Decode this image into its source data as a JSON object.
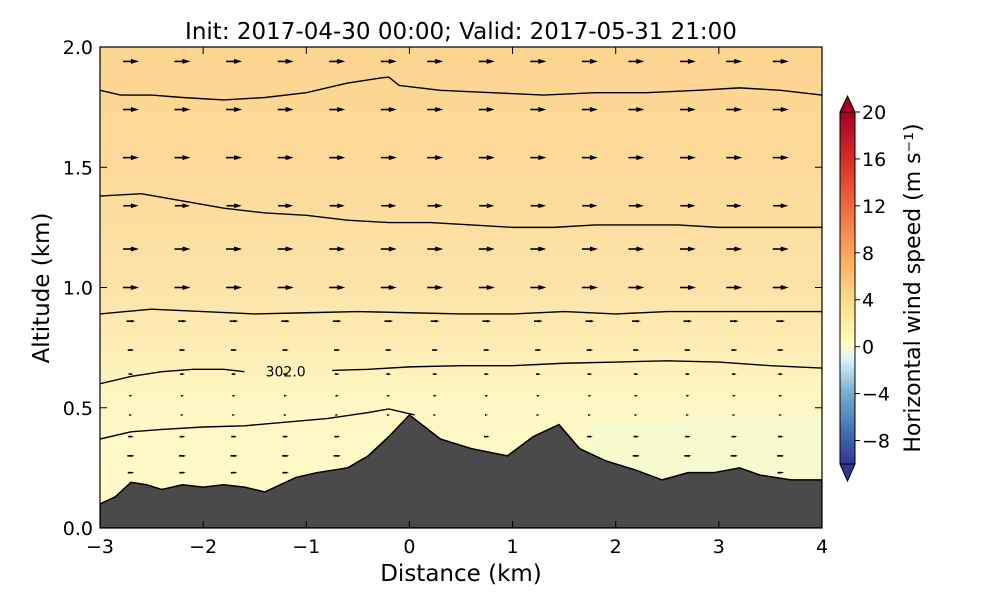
{
  "chart_data": {
    "type": "heatmap",
    "title": "Init: 2017-04-30 00:00; Valid: 2017-05-31 21:00",
    "xlabel": "Distance (km)",
    "ylabel": "Altitude (km)",
    "xlim": [
      -3,
      4
    ],
    "ylim": [
      0.0,
      2.0
    ],
    "x_ticks": [
      -3,
      -2,
      -1,
      0,
      1,
      2,
      3,
      4
    ],
    "x_tick_labels": [
      "−3",
      "−2",
      "−1",
      "0",
      "1",
      "2",
      "3",
      "4"
    ],
    "y_ticks": [
      0.0,
      0.5,
      1.0,
      1.5,
      2.0
    ],
    "y_tick_labels": [
      "0.0",
      "0.5",
      "1.0",
      "1.5",
      "2.0"
    ],
    "colorbar": {
      "label": "Horizontal wind speed (m s⁻¹)",
      "range": [
        -10,
        20
      ],
      "extend": "both",
      "ticks": [
        20,
        16,
        12,
        8,
        4,
        0,
        -4,
        -8
      ],
      "tick_labels": [
        "20",
        "16",
        "12",
        "8",
        "4",
        "0",
        "−4",
        "−8"
      ],
      "colormap": "RdYlBu_r"
    },
    "terrain": {
      "x": [
        -3.0,
        -2.85,
        -2.7,
        -2.55,
        -2.4,
        -2.2,
        -2.0,
        -1.8,
        -1.6,
        -1.4,
        -1.3,
        -1.1,
        -0.9,
        -0.6,
        -0.4,
        -0.2,
        0.0,
        0.15,
        0.3,
        0.6,
        0.95,
        1.2,
        1.45,
        1.65,
        1.9,
        2.2,
        2.45,
        2.7,
        2.95,
        3.2,
        3.4,
        3.7,
        4.0
      ],
      "y": [
        0.1,
        0.13,
        0.19,
        0.18,
        0.16,
        0.18,
        0.17,
        0.18,
        0.17,
        0.15,
        0.17,
        0.21,
        0.23,
        0.25,
        0.3,
        0.38,
        0.47,
        0.42,
        0.37,
        0.33,
        0.3,
        0.38,
        0.43,
        0.33,
        0.28,
        0.24,
        0.2,
        0.23,
        0.23,
        0.25,
        0.22,
        0.2,
        0.2
      ]
    },
    "theta_contours": [
      {
        "level": "302.0",
        "labeled": true,
        "label_x": -1.2,
        "label_y": 0.65,
        "x": [
          -3.0,
          -2.7,
          -2.4,
          -2.1,
          -1.8,
          -1.6
        ],
        "y": [
          0.6,
          0.63,
          0.65,
          0.66,
          0.66,
          0.65
        ]
      },
      {
        "level": "",
        "labeled": false,
        "x": [
          -0.75,
          -0.4,
          0.0,
          0.5,
          1.0,
          1.5,
          2.0,
          2.5,
          3.0,
          3.5,
          4.0
        ],
        "y": [
          0.655,
          0.66,
          0.67,
          0.675,
          0.675,
          0.685,
          0.69,
          0.695,
          0.69,
          0.675,
          0.665
        ]
      },
      {
        "level": "",
        "labeled": false,
        "x": [
          -3.0,
          -2.7,
          -2.4,
          -2.0,
          -1.6,
          -1.2,
          -0.8,
          -0.4,
          -0.2,
          -0.05,
          0.05
        ],
        "y": [
          0.37,
          0.4,
          0.41,
          0.42,
          0.425,
          0.44,
          0.455,
          0.48,
          0.495,
          0.48,
          0.47
        ]
      },
      {
        "level": "",
        "labeled": false,
        "x": [
          -3.0,
          -2.5,
          -2.0,
          -1.5,
          -1.0,
          -0.5,
          0.0,
          0.5,
          1.0,
          1.5,
          2.0,
          2.5,
          3.0,
          3.5,
          4.0
        ],
        "y": [
          0.89,
          0.91,
          0.9,
          0.89,
          0.895,
          0.9,
          0.895,
          0.89,
          0.89,
          0.9,
          0.89,
          0.9,
          0.9,
          0.9,
          0.9
        ]
      },
      {
        "level": "",
        "labeled": false,
        "x": [
          -3.0,
          -2.6,
          -2.2,
          -1.8,
          -1.4,
          -1.0,
          -0.6,
          -0.2,
          0.2,
          0.6,
          1.0,
          1.4,
          1.8,
          2.2,
          2.6,
          3.0,
          3.4,
          3.8,
          4.0
        ],
        "y": [
          1.38,
          1.39,
          1.36,
          1.33,
          1.31,
          1.3,
          1.28,
          1.27,
          1.27,
          1.26,
          1.25,
          1.25,
          1.26,
          1.26,
          1.26,
          1.25,
          1.25,
          1.25,
          1.25
        ]
      },
      {
        "level": "",
        "labeled": false,
        "x": [
          -3.0,
          -2.8,
          -2.5,
          -2.2,
          -1.8,
          -1.4,
          -1.0,
          -0.6,
          -0.3,
          -0.2,
          -0.1,
          0.3,
          0.8,
          1.3,
          1.8,
          2.3,
          2.8,
          3.2,
          3.6,
          4.0
        ],
        "y": [
          1.82,
          1.8,
          1.8,
          1.79,
          1.78,
          1.79,
          1.81,
          1.85,
          1.87,
          1.875,
          1.84,
          1.82,
          1.81,
          1.8,
          1.81,
          1.81,
          1.82,
          1.83,
          1.82,
          1.8
        ]
      }
    ],
    "wind_rows": [
      {
        "z": 1.94,
        "speed": 1.0
      },
      {
        "z": 1.74,
        "speed": 1.0
      },
      {
        "z": 1.54,
        "speed": 1.0
      },
      {
        "z": 1.34,
        "speed": 0.95
      },
      {
        "z": 1.16,
        "speed": 1.0
      },
      {
        "z": 1.0,
        "speed": 1.0
      },
      {
        "z": 0.86,
        "speed": 0.55
      },
      {
        "z": 0.74,
        "speed": 0.4
      },
      {
        "z": 0.64,
        "speed": 0.3
      },
      {
        "z": 0.55,
        "speed": 0.2
      },
      {
        "z": 0.47,
        "speed": 0.15
      },
      {
        "z": 0.38,
        "speed": 0.35
      },
      {
        "z": 0.3,
        "speed": 0.45
      },
      {
        "z": 0.23,
        "speed": 0.4
      }
    ],
    "wind_columns_x": [
      -2.7,
      -2.2,
      -1.7,
      -1.2,
      -0.7,
      -0.2,
      0.25,
      0.75,
      1.25,
      1.75,
      2.2,
      2.7,
      3.15,
      3.6
    ],
    "grid": false
  }
}
